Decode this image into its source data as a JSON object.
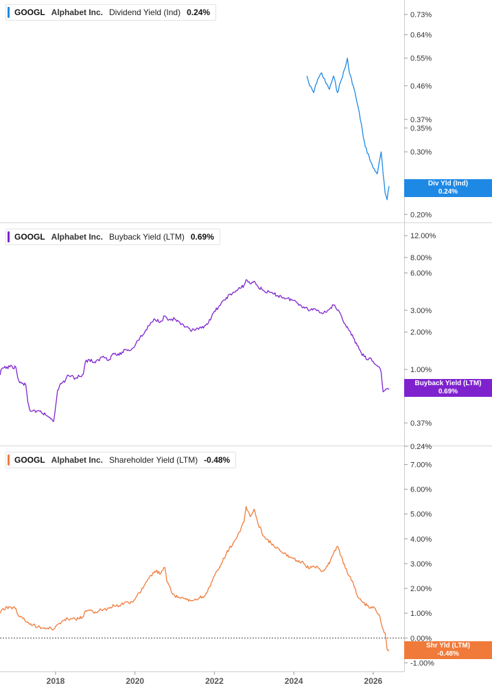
{
  "colors": {
    "dividend": "#1e88e5",
    "buyback": "#7e22ce",
    "shareholder": "#f07a3a",
    "axis": "#cccccc"
  },
  "x_axis": {
    "ticks": [
      "2018",
      "2020",
      "2022",
      "2024",
      "2026"
    ]
  },
  "chart_data": [
    {
      "type": "line",
      "legend": {
        "ticker": "GOOGL",
        "company": "Alphabet Inc.",
        "metric": "Dividend Yield (Ind)",
        "value": "0.24%"
      },
      "end_tag": {
        "name": "Div Yld (Ind)",
        "value": "0.24%"
      },
      "y_scale": "log",
      "ylim": [
        0.195,
        0.77
      ],
      "y_ticks": [
        {
          "v": 0.73,
          "label": "0.73%"
        },
        {
          "v": 0.64,
          "label": "0.64%"
        },
        {
          "v": 0.55,
          "label": "0.55%"
        },
        {
          "v": 0.46,
          "label": "0.46%"
        },
        {
          "v": 0.37,
          "label": "0.37%"
        },
        {
          "v": 0.35,
          "label": "0.35%"
        },
        {
          "v": 0.3,
          "label": "0.30%"
        },
        {
          "v": 0.2,
          "label": "0.20%"
        }
      ],
      "series": [
        {
          "x": [
            2024.33,
            2024.4,
            2024.5,
            2024.6,
            2024.7,
            2024.8,
            2024.9,
            2025.0,
            2025.1,
            2025.2,
            2025.3,
            2025.35,
            2025.4,
            2025.5,
            2025.6,
            2025.7,
            2025.75,
            2025.8,
            2025.9,
            2025.95,
            2026.0,
            2026.1,
            2026.15,
            2026.2,
            2026.25,
            2026.3,
            2026.35,
            2026.4
          ],
          "y": [
            0.49,
            0.46,
            0.44,
            0.48,
            0.5,
            0.47,
            0.45,
            0.49,
            0.44,
            0.48,
            0.52,
            0.55,
            0.5,
            0.46,
            0.41,
            0.36,
            0.33,
            0.31,
            0.29,
            0.28,
            0.27,
            0.26,
            0.28,
            0.3,
            0.26,
            0.23,
            0.22,
            0.24
          ]
        }
      ]
    },
    {
      "type": "line",
      "legend": {
        "ticker": "GOOGL",
        "company": "Alphabet Inc.",
        "metric": "Buyback Yield (LTM)",
        "value": "0.69%"
      },
      "end_tag": {
        "name": "Buyback Yield (LTM)",
        "value": "0.69%"
      },
      "y_scale": "log",
      "ylim": [
        0.24,
        13.5
      ],
      "y_ticks": [
        {
          "v": 12,
          "label": "12.00%"
        },
        {
          "v": 8,
          "label": "8.00%"
        },
        {
          "v": 6,
          "label": "6.00%"
        },
        {
          "v": 3,
          "label": "3.00%"
        },
        {
          "v": 2,
          "label": "2.00%"
        },
        {
          "v": 1,
          "label": "1.00%"
        },
        {
          "v": 0.37,
          "label": "0.37%"
        },
        {
          "v": 0.24,
          "label": "0.24%"
        }
      ],
      "series": [
        {
          "x": [
            2016.6,
            2016.65,
            2016.85,
            2017.0,
            2017.05,
            2017.1,
            2017.25,
            2017.3,
            2017.35,
            2017.5,
            2017.6,
            2017.8,
            2017.9,
            2017.95,
            2018.05,
            2018.1,
            2018.25,
            2018.3,
            2018.5,
            2018.7,
            2018.75,
            2018.85,
            2019.0,
            2019.2,
            2019.35,
            2019.45,
            2019.6,
            2019.75,
            2019.85,
            2020.0,
            2020.05,
            2020.2,
            2020.35,
            2020.5,
            2020.65,
            2020.75,
            2020.85,
            2021.0,
            2021.15,
            2021.3,
            2021.4,
            2021.6,
            2021.75,
            2021.9,
            2022.0,
            2022.15,
            2022.3,
            2022.5,
            2022.65,
            2022.75,
            2022.8,
            2022.9,
            2023.0,
            2023.1,
            2023.25,
            2023.5,
            2023.75,
            2024.0,
            2024.25,
            2024.4,
            2024.5,
            2024.75,
            2024.85,
            2025.0,
            2025.1,
            2025.2,
            2025.3,
            2025.5,
            2025.6,
            2025.7,
            2025.85,
            2025.95,
            2026.05,
            2026.15,
            2026.2,
            2026.25,
            2026.3,
            2026.35,
            2026.4
          ],
          "y": [
            0.9,
            1.02,
            1.05,
            1.04,
            0.85,
            0.78,
            0.75,
            0.55,
            0.47,
            0.45,
            0.46,
            0.42,
            0.4,
            0.38,
            0.68,
            0.74,
            0.82,
            0.9,
            0.85,
            0.92,
            1.15,
            1.2,
            1.13,
            1.28,
            1.2,
            1.35,
            1.3,
            1.45,
            1.42,
            1.55,
            1.7,
            1.9,
            2.25,
            2.55,
            2.45,
            2.7,
            2.5,
            2.55,
            2.3,
            2.2,
            2.05,
            2.1,
            2.25,
            2.5,
            2.95,
            3.3,
            3.8,
            4.2,
            4.5,
            4.8,
            5.3,
            4.9,
            5.15,
            4.65,
            4.3,
            4.05,
            3.8,
            3.6,
            3.2,
            3.0,
            3.1,
            2.85,
            3.0,
            3.3,
            3.0,
            2.7,
            2.3,
            1.8,
            1.55,
            1.35,
            1.2,
            1.22,
            1.1,
            1.05,
            0.95,
            0.66,
            0.68,
            0.7,
            0.69
          ]
        }
      ]
    },
    {
      "type": "line",
      "legend": {
        "ticker": "GOOGL",
        "company": "Alphabet Inc.",
        "metric": "Shareholder Yield (LTM)",
        "value": "-0.48%"
      },
      "end_tag": {
        "name": "Shr Yld (LTM)",
        "value": "-0.48%"
      },
      "y_scale": "linear",
      "ylim": [
        -1.1,
        7.4
      ],
      "zero_line": true,
      "y_ticks": [
        {
          "v": 7,
          "label": "7.00%"
        },
        {
          "v": 6,
          "label": "6.00%"
        },
        {
          "v": 5,
          "label": "5.00%"
        },
        {
          "v": 4,
          "label": "4.00%"
        },
        {
          "v": 3,
          "label": "3.00%"
        },
        {
          "v": 2,
          "label": "2.00%"
        },
        {
          "v": 1,
          "label": "1.00%"
        },
        {
          "v": 0,
          "label": "0.00%"
        },
        {
          "v": -1,
          "label": "-1.00%"
        }
      ],
      "series": [
        {
          "x": [
            2016.6,
            2016.65,
            2016.85,
            2017.0,
            2017.05,
            2017.1,
            2017.3,
            2017.35,
            2017.6,
            2017.8,
            2017.95,
            2018.05,
            2018.1,
            2018.25,
            2018.3,
            2018.5,
            2018.7,
            2018.75,
            2019.0,
            2019.2,
            2019.35,
            2019.45,
            2019.6,
            2019.75,
            2019.85,
            2020.0,
            2020.05,
            2020.2,
            2020.35,
            2020.5,
            2020.65,
            2020.75,
            2020.8,
            2020.9,
            2021.0,
            2021.15,
            2021.3,
            2021.4,
            2021.6,
            2021.75,
            2021.9,
            2022.0,
            2022.15,
            2022.3,
            2022.5,
            2022.65,
            2022.75,
            2022.8,
            2022.9,
            2023.0,
            2023.1,
            2023.25,
            2023.5,
            2023.75,
            2024.0,
            2024.25,
            2024.4,
            2024.5,
            2024.75,
            2024.85,
            2025.0,
            2025.1,
            2025.2,
            2025.3,
            2025.5,
            2025.6,
            2025.7,
            2025.85,
            2025.95,
            2026.05,
            2026.15,
            2026.2,
            2026.25,
            2026.3,
            2026.35,
            2026.4
          ],
          "y": [
            1.0,
            1.15,
            1.25,
            1.2,
            0.95,
            0.85,
            0.65,
            0.55,
            0.45,
            0.4,
            0.35,
            0.55,
            0.6,
            0.7,
            0.8,
            0.75,
            0.85,
            1.1,
            1.05,
            1.15,
            1.2,
            1.35,
            1.3,
            1.45,
            1.4,
            1.55,
            1.7,
            2.0,
            2.4,
            2.7,
            2.6,
            2.85,
            2.3,
            1.95,
            1.7,
            1.6,
            1.55,
            1.5,
            1.6,
            1.7,
            2.1,
            2.5,
            2.9,
            3.4,
            3.9,
            4.3,
            4.7,
            5.3,
            4.9,
            5.2,
            4.6,
            4.1,
            3.7,
            3.4,
            3.2,
            3.0,
            2.8,
            2.9,
            2.7,
            2.9,
            3.4,
            3.7,
            3.3,
            2.8,
            2.2,
            1.7,
            1.5,
            1.3,
            1.25,
            1.2,
            0.95,
            0.6,
            0.35,
            0.2,
            -0.45,
            -0.48
          ]
        }
      ]
    }
  ]
}
